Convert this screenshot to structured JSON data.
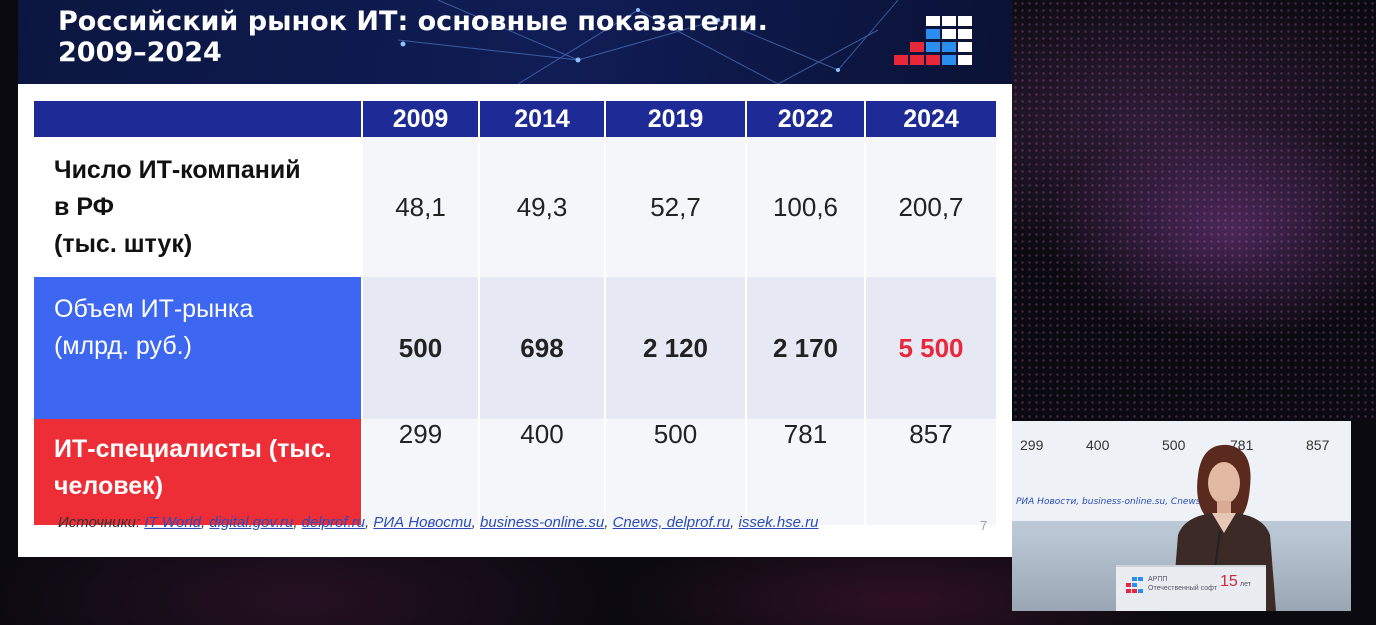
{
  "slide": {
    "title": "Российский рынок ИТ: основные показатели.\n2009–2024",
    "page_number": "7",
    "colors": {
      "header_bg": "#101d55",
      "table_header": "#1e2a96",
      "market_row": "#3d67f0",
      "specialists_row": "#ed2e37",
      "highlight_value": "#e8283a"
    },
    "table": {
      "years": [
        "2009",
        "2014",
        "2019",
        "2022",
        "2024"
      ],
      "rows": [
        {
          "label": "Число ИТ-компаний\n в РФ\n(тыс. штук)",
          "values": [
            "48,1",
            "49,3",
            "52,7",
            "100,6",
            "200,7"
          ]
        },
        {
          "label": "Объем ИТ-рынка\n(млрд. руб.)",
          "values": [
            "500",
            "698",
            "2 120",
            "2 170",
            "5 500"
          ]
        },
        {
          "label": "ИТ-специалисты (тыс.\nчеловек)",
          "values": [
            "299",
            "400",
            "500",
            "781",
            "857"
          ]
        }
      ]
    },
    "sources": {
      "prefix": "Источники:",
      "links": [
        "IT World",
        "digital.gov.ru",
        "delprof.ru",
        "РИА Новости",
        "business-online.su",
        "Cnews, delprof.ru",
        "issek.hse.ru"
      ]
    }
  },
  "video": {
    "screen_values": [
      "299",
      "400",
      "500",
      "781",
      "857"
    ],
    "screen_sources": "РИА Новости, business-online.su, Cnews",
    "podium_text": "АРПП\nОтечественный софт",
    "podium_badge": "15",
    "podium_badge_sub": "лет"
  }
}
